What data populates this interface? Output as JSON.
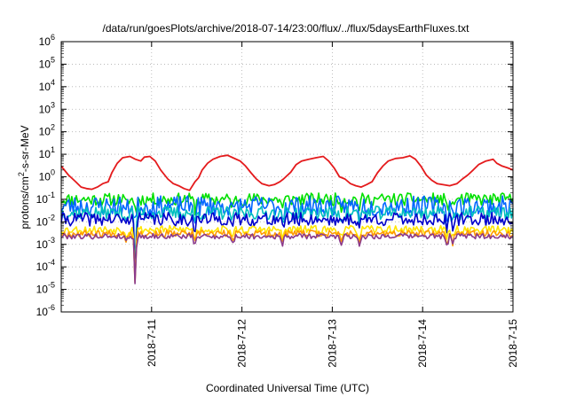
{
  "chart_data": {
    "type": "line",
    "title": "/data/run/goesPlots/archive/2018-07-14/23:00/flux/../flux/5daysEarthFluxes.txt",
    "xlabel": "Coordinated Universal Time (UTC)",
    "ylabel_parts": {
      "base": "protons/cm",
      "sup": "2",
      "rest": "-s-sr-MeV"
    },
    "y_scale": "log",
    "ylim_exp": [
      -6,
      6
    ],
    "y_ticks": [
      {
        "exp": -6,
        "label_base": "10",
        "label_exp": "-6"
      },
      {
        "exp": -5,
        "label_base": "10",
        "label_exp": "-5"
      },
      {
        "exp": -4,
        "label_base": "10",
        "label_exp": "-4"
      },
      {
        "exp": -3,
        "label_base": "10",
        "label_exp": "-3"
      },
      {
        "exp": -2,
        "label_base": "10",
        "label_exp": "-2"
      },
      {
        "exp": -1,
        "label_base": "10",
        "label_exp": "-1"
      },
      {
        "exp": 0,
        "label_base": "10",
        "label_exp": "0"
      },
      {
        "exp": 1,
        "label_base": "10",
        "label_exp": "1"
      },
      {
        "exp": 2,
        "label_base": "10",
        "label_exp": "2"
      },
      {
        "exp": 3,
        "label_base": "10",
        "label_exp": "3"
      },
      {
        "exp": 4,
        "label_base": "10",
        "label_exp": "4"
      },
      {
        "exp": 5,
        "label_base": "10",
        "label_exp": "5"
      },
      {
        "exp": 6,
        "label_base": "10",
        "label_exp": "6"
      }
    ],
    "x_ticks": [
      {
        "day": 1,
        "label": "2018-7-11"
      },
      {
        "day": 2,
        "label": "2018-7-12"
      },
      {
        "day": 3,
        "label": "2018-7-13"
      },
      {
        "day": 4,
        "label": "2018-7-14"
      },
      {
        "day": 5,
        "label": "2018-7-15"
      }
    ],
    "xlim_day": [
      0,
      5
    ],
    "grid": true,
    "series": [
      {
        "color": "#e41a1c",
        "points": [
          [
            0.0,
            3.0
          ],
          [
            0.08,
            1.2
          ],
          [
            0.16,
            0.6
          ],
          [
            0.22,
            0.35
          ],
          [
            0.28,
            0.3
          ],
          [
            0.34,
            0.28
          ],
          [
            0.4,
            0.35
          ],
          [
            0.46,
            0.5
          ],
          [
            0.52,
            0.6
          ],
          [
            0.56,
            1.5
          ],
          [
            0.62,
            4.0
          ],
          [
            0.68,
            7.0
          ],
          [
            0.76,
            8.0
          ],
          [
            0.82,
            6.0
          ],
          [
            0.88,
            5.0
          ],
          [
            0.92,
            7.5
          ],
          [
            0.98,
            8.0
          ],
          [
            1.04,
            5.0
          ],
          [
            1.1,
            2.0
          ],
          [
            1.18,
            0.8
          ],
          [
            1.24,
            0.5
          ],
          [
            1.3,
            0.4
          ],
          [
            1.36,
            0.3
          ],
          [
            1.42,
            0.25
          ],
          [
            1.48,
            0.6
          ],
          [
            1.52,
            0.9
          ],
          [
            1.56,
            2.0
          ],
          [
            1.62,
            4.0
          ],
          [
            1.68,
            6.0
          ],
          [
            1.76,
            8.0
          ],
          [
            1.84,
            9.0
          ],
          [
            1.9,
            7.0
          ],
          [
            1.98,
            5.0
          ],
          [
            2.04,
            3.0
          ],
          [
            2.1,
            1.5
          ],
          [
            2.16,
            0.8
          ],
          [
            2.22,
            0.5
          ],
          [
            2.3,
            0.4
          ],
          [
            2.36,
            0.45
          ],
          [
            2.42,
            0.6
          ],
          [
            2.46,
            0.8
          ],
          [
            2.54,
            1.6
          ],
          [
            2.6,
            3.5
          ],
          [
            2.66,
            5.0
          ],
          [
            2.74,
            6.0
          ],
          [
            2.82,
            7.0
          ],
          [
            2.9,
            8.0
          ],
          [
            2.96,
            5.0
          ],
          [
            3.02,
            2.5
          ],
          [
            3.08,
            1.0
          ],
          [
            3.14,
            0.8
          ],
          [
            3.2,
            0.5
          ],
          [
            3.26,
            0.4
          ],
          [
            3.32,
            0.35
          ],
          [
            3.38,
            0.45
          ],
          [
            3.44,
            0.6
          ],
          [
            3.5,
            1.5
          ],
          [
            3.56,
            3.0
          ],
          [
            3.62,
            5.0
          ],
          [
            3.7,
            6.5
          ],
          [
            3.78,
            7.0
          ],
          [
            3.86,
            8.5
          ],
          [
            3.92,
            6.0
          ],
          [
            3.98,
            3.0
          ],
          [
            4.04,
            1.2
          ],
          [
            4.1,
            0.7
          ],
          [
            4.16,
            0.5
          ],
          [
            4.22,
            0.45
          ],
          [
            4.3,
            0.4
          ],
          [
            4.38,
            0.5
          ],
          [
            4.44,
            0.8
          ],
          [
            4.5,
            1.2
          ],
          [
            4.56,
            2.0
          ],
          [
            4.62,
            3.5
          ],
          [
            4.7,
            5.0
          ],
          [
            4.78,
            6.0
          ],
          [
            4.82,
            4.0
          ],
          [
            4.88,
            3.0
          ],
          [
            4.94,
            2.5
          ],
          [
            5.0,
            2.0
          ]
        ]
      },
      {
        "color": "#00e000",
        "base": 0.1,
        "amp": 0.28,
        "seed": 11,
        "dip_min": 0.08
      },
      {
        "color": "#0066ff",
        "base": 0.05,
        "amp": 0.45,
        "seed": 23,
        "dip_min": 0.02
      },
      {
        "color": "#00bfbf",
        "base": 0.025,
        "amp": 0.3,
        "seed": 37,
        "dip_min": 2e-05
      },
      {
        "color": "#0000cc",
        "base": 0.013,
        "amp": 0.3,
        "seed": 41,
        "dip_min": 1e-05
      },
      {
        "color": "#ffe600",
        "base": 0.0045,
        "amp": 0.18,
        "seed": 53,
        "dip_min": 8e-06
      },
      {
        "color": "#ff9900",
        "base": 0.003,
        "amp": 0.15,
        "seed": 67,
        "dip_min": 7e-06
      },
      {
        "color": "#8b3a8b",
        "base": 0.0023,
        "amp": 0.12,
        "seed": 79,
        "dip_min": 6e-06
      }
    ]
  }
}
